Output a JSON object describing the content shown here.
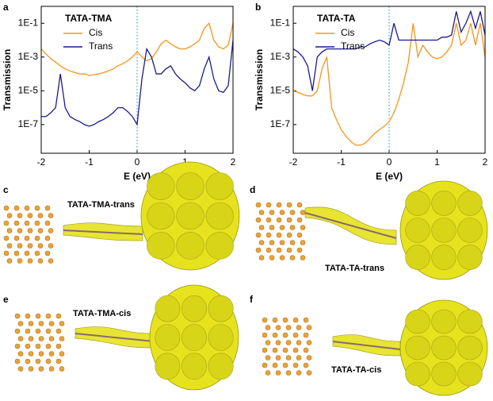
{
  "chart_data": [
    {
      "type": "line",
      "panel": "a",
      "legend_title": "TATA-TMA",
      "xlabel": "E (eV)",
      "ylabel": "Transmission",
      "log_y": true,
      "vline": 0,
      "x": [
        -2,
        -1.9,
        -1.8,
        -1.7,
        -1.6,
        -1.5,
        -1.4,
        -1.3,
        -1.2,
        -1.1,
        -1,
        -0.9,
        -0.8,
        -0.7,
        -0.6,
        -0.5,
        -0.4,
        -0.3,
        -0.2,
        -0.1,
        0,
        0.1,
        0.2,
        0.3,
        0.4,
        0.5,
        0.6,
        0.7,
        0.8,
        0.9,
        1,
        1.1,
        1.2,
        1.3,
        1.4,
        1.5,
        1.6,
        1.7,
        1.8,
        1.9,
        2
      ],
      "series": [
        {
          "name": "Cis",
          "color": "#f7941d",
          "values": [
            0.003,
            0.0015,
            0.0008,
            0.0005,
            0.0003,
            0.0002,
            0.00015,
            0.00012,
            0.0001,
            0.0001,
            8e-05,
            9e-05,
            0.0001,
            0.00012,
            0.00015,
            0.0002,
            0.0003,
            0.0004,
            0.0006,
            0.001,
            0.002,
            0.001,
            0.0006,
            0.0008,
            0.002,
            0.006,
            0.01,
            0.006,
            0.004,
            0.003,
            0.003,
            0.004,
            0.006,
            0.01,
            0.05,
            0.1,
            0.01,
            0.004,
            0.003,
            0.005,
            0.1
          ]
        },
        {
          "name": "Trans",
          "color": "#1a1a8c",
          "values": [
            3e-07,
            3e-07,
            5e-07,
            1e-06,
            0.0001,
            1e-06,
            3e-07,
            2e-07,
            1.5e-07,
            1e-07,
            8e-08,
            1e-07,
            1.5e-07,
            2e-07,
            3e-07,
            5e-07,
            1e-06,
            1e-06,
            6e-07,
            3e-07,
            1e-07,
            5e-05,
            0.003,
            0.001,
            0.0001,
            0.0001,
            0.0002,
            0.0003,
            0.0001,
            5e-05,
            3e-05,
            1.5e-05,
            1e-05,
            2e-05,
            0.0002,
            0.001,
            5e-05,
            1e-05,
            8e-06,
            2e-05,
            0.01
          ]
        }
      ],
      "xlim": [
        -2,
        2
      ],
      "xticks": [
        -2,
        -1,
        0,
        1,
        2
      ],
      "ylim": [
        2e-09,
        1
      ],
      "yticks": [
        {
          "value": 1e-07,
          "label": "1E-7"
        },
        {
          "value": 1e-05,
          "label": "1E-5"
        },
        {
          "value": 0.001,
          "label": "1E-3"
        },
        {
          "value": 0.1,
          "label": "1E-1"
        }
      ]
    },
    {
      "type": "line",
      "panel": "b",
      "legend_title": "TATA-TA",
      "xlabel": "E (eV)",
      "ylabel": "Transmission",
      "log_y": true,
      "vline": 0,
      "x": [
        -2,
        -1.9,
        -1.8,
        -1.7,
        -1.6,
        -1.5,
        -1.4,
        -1.3,
        -1.2,
        -1.1,
        -1,
        -0.9,
        -0.8,
        -0.7,
        -0.6,
        -0.5,
        -0.4,
        -0.3,
        -0.2,
        -0.1,
        0,
        0.1,
        0.2,
        0.3,
        0.4,
        0.5,
        0.6,
        0.7,
        0.8,
        0.9,
        1,
        1.1,
        1.2,
        1.3,
        1.4,
        1.5,
        1.6,
        1.7,
        1.8,
        1.9,
        2
      ],
      "series": [
        {
          "name": "Cis",
          "color": "#f7941d",
          "values": [
            1e-05,
            8e-06,
            6e-06,
            5e-06,
            5e-06,
            1e-05,
            0.0002,
            0.001,
            1e-06,
            2e-07,
            5e-08,
            2e-08,
            1e-08,
            6e-09,
            6e-09,
            8e-09,
            1.5e-08,
            3e-08,
            5e-08,
            8e-08,
            1.5e-07,
            5e-07,
            3e-06,
            3e-05,
            0.0005,
            0.1,
            0.001,
            0.005,
            0.002,
            0.001,
            0.0008,
            0.001,
            0.002,
            0.005,
            0.1,
            0.005,
            0.01,
            0.1,
            0.005,
            0.1,
            0.001
          ]
        },
        {
          "name": "Trans",
          "color": "#1a1a8c",
          "values": [
            0.003,
            0.002,
            0.001,
            0.0003,
            1e-05,
            0.001,
            0.002,
            0.003,
            0.003,
            0.003,
            0.003,
            0.003,
            0.003,
            0.003,
            0.004,
            0.004,
            0.006,
            0.008,
            0.01,
            0.008,
            0.005,
            0.1,
            0.01,
            0.01,
            0.01,
            0.01,
            0.01,
            0.01,
            0.01,
            0.01,
            0.01,
            0.015,
            0.015,
            0.02,
            0.5,
            0.03,
            0.1,
            0.5,
            0.05,
            0.5,
            0.02
          ]
        }
      ],
      "xlim": [
        -2,
        2
      ],
      "xticks": [
        -2,
        -1,
        0,
        1,
        2
      ],
      "ylim": [
        2e-09,
        1
      ],
      "yticks": [
        {
          "value": 1e-07,
          "label": "1E-7"
        },
        {
          "value": 1e-05,
          "label": "1E-5"
        },
        {
          "value": 0.001,
          "label": "1E-3"
        },
        {
          "value": 0.1,
          "label": "1E-1"
        }
      ]
    }
  ],
  "illustrations": [
    {
      "panel": "c",
      "label": "TATA-TMA-trans"
    },
    {
      "panel": "d",
      "label": "TATA-TA-trans"
    },
    {
      "panel": "e",
      "label": "TATA-TMA-cis"
    },
    {
      "panel": "f",
      "label": "TATA-TA-cis"
    }
  ]
}
